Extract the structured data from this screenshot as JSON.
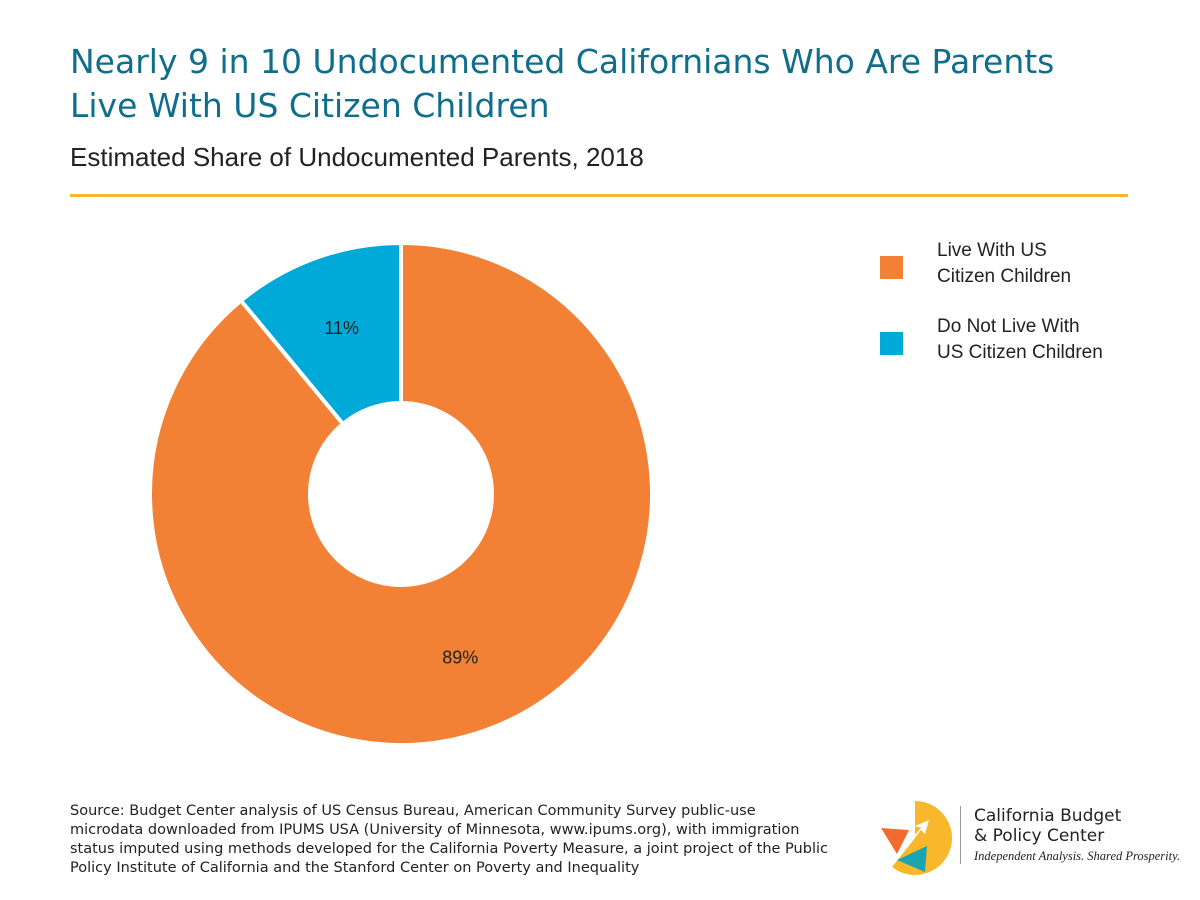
{
  "header": {
    "title_line1": "Nearly 9 in 10 Undocumented Californians Who Are Parents",
    "title_line2": "Live With US Citizen Children",
    "subtitle": "Estimated Share of Undocumented Parents, 2018"
  },
  "chart_data": {
    "type": "pie",
    "variant": "donut",
    "title": "Nearly 9 in 10 Undocumented Californians Who Are Parents Live With US Citizen Children",
    "subtitle": "Estimated Share of Undocumented Parents, 2018",
    "categories": [
      "Live With US Citizen Children",
      "Do Not Live With US Citizen Children"
    ],
    "values": [
      89,
      11
    ],
    "labels": [
      "89%",
      "11%"
    ],
    "colors": [
      "#f28135",
      "#00aad8"
    ],
    "legend_placement": "right",
    "grid": false
  },
  "legend": {
    "items": [
      {
        "label": "Live With US Citizen Children",
        "color": "#f28135"
      },
      {
        "label": "Do Not Live With US Citizen Children",
        "color": "#00aad8"
      }
    ]
  },
  "footer": {
    "source": "Source: Budget Center analysis of US Census Bureau, American Community Survey public-use microdata downloaded from IPUMS USA (University of Minnesota, www.ipums.org), with immigration status imputed using methods developed for the California Poverty Measure, a joint project of the Public Policy Institute of California and the Stanford Center on Poverty and Inequality",
    "logo_line1": "California Budget",
    "logo_line2": "& Policy Center",
    "logo_tagline": "Independent Analysis. Shared Prosperity.",
    "logo_colors": [
      "#f9b72b",
      "#f26a2e",
      "#1aa5b0"
    ]
  }
}
